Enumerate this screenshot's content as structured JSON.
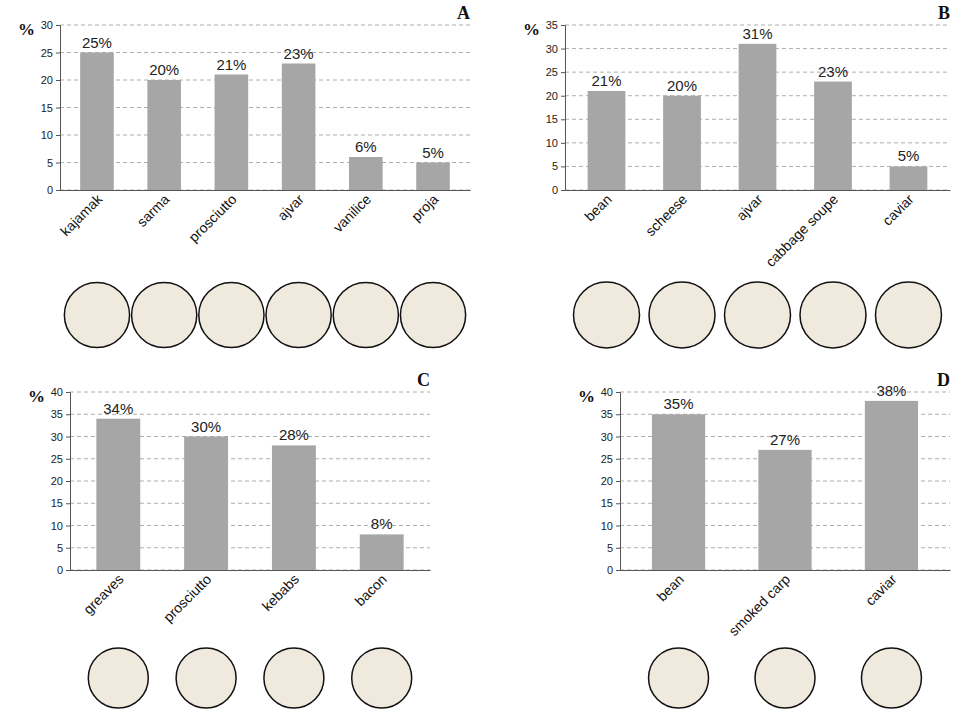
{
  "chart_data": [
    {
      "type": "bar",
      "title": "A",
      "y_label": "%",
      "categories": [
        "kajamak",
        "sarma",
        "prosciutto",
        "ajvar",
        "vanilice",
        "proja"
      ],
      "values": [
        25,
        20,
        21,
        23,
        6,
        5
      ],
      "value_labels": [
        "25%",
        "20%",
        "21%",
        "23%",
        "6%",
        "5%"
      ],
      "color": "#a6a6a6",
      "ylim": [
        0,
        30
      ],
      "yticks": [
        0,
        5,
        10,
        15,
        20,
        25,
        30
      ],
      "grid": true,
      "data_labels": true
    },
    {
      "type": "bar",
      "title": "B",
      "y_label": "%",
      "categories": [
        "bean",
        "scheese",
        "ajvar",
        "cabbage soupe",
        "caviar"
      ],
      "values": [
        21,
        20,
        31,
        23,
        5
      ],
      "value_labels": [
        "21%",
        "20%",
        "31%",
        "23%",
        "5%"
      ],
      "color": "#a6a6a6",
      "ylim": [
        0,
        35
      ],
      "yticks": [
        0,
        5,
        10,
        15,
        20,
        25,
        30,
        35
      ],
      "grid": true,
      "data_labels": true
    },
    {
      "type": "bar",
      "title": "C",
      "y_label": "%",
      "categories": [
        "greaves",
        "prosciutto",
        "kebabs",
        "bacon"
      ],
      "values": [
        34,
        30,
        28,
        8
      ],
      "value_labels": [
        "34%",
        "30%",
        "28%",
        "8%"
      ],
      "color": "#a6a6a6",
      "ylim": [
        0,
        40
      ],
      "yticks": [
        0,
        5,
        10,
        15,
        20,
        25,
        30,
        35,
        40
      ],
      "grid": true,
      "data_labels": true
    },
    {
      "type": "bar",
      "title": "D",
      "y_label": "%",
      "categories": [
        "bean",
        "smoked carp",
        "caviar"
      ],
      "values": [
        35,
        27,
        38
      ],
      "value_labels": [
        "35%",
        "27%",
        "38%"
      ],
      "color": "#a6a6a6",
      "ylim": [
        0,
        40
      ],
      "yticks": [
        0,
        5,
        10,
        15,
        20,
        25,
        30,
        35,
        40
      ],
      "grid": true,
      "data_labels": true
    }
  ]
}
